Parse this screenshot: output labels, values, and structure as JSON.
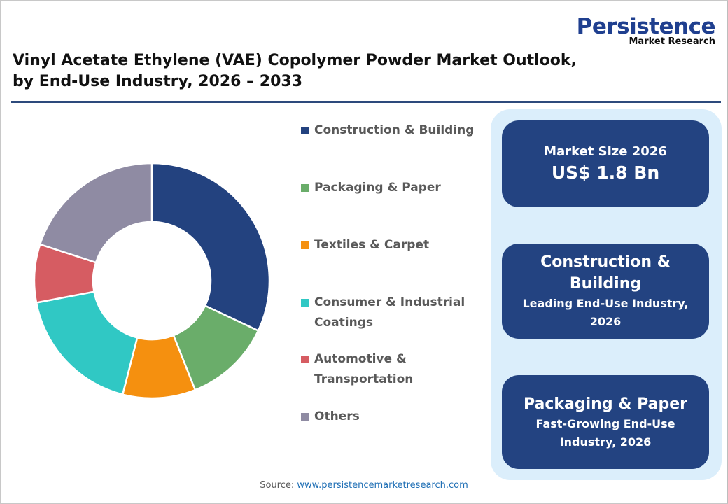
{
  "brand": {
    "name": "Persistence",
    "tagline": "Market Research",
    "color": "#1f3f8f"
  },
  "title": {
    "line1": "Vinyl Acetate Ethylene (VAE) Copolymer Powder Market Outlook,",
    "line2": "by End-Use Industry, 2026 – 2033"
  },
  "legend": [
    {
      "label_lines": [
        "Construction & Building"
      ],
      "color": "#23427f"
    },
    {
      "label_lines": [
        "Packaging & Paper"
      ],
      "color": "#6aad6a"
    },
    {
      "label_lines": [
        "Textiles & Carpet"
      ],
      "color": "#f5900f"
    },
    {
      "label_lines": [
        "Consumer & Industrial",
        "Coatings"
      ],
      "color": "#30c8c4"
    },
    {
      "label_lines": [
        "Automotive &",
        "Transportation"
      ],
      "color": "#d65c62"
    },
    {
      "label_lines": [
        "Others"
      ],
      "color": "#8f8ba3"
    }
  ],
  "cards": {
    "market_size": {
      "label": "Market Size 2026",
      "value": "US$ 1.8 Bn"
    },
    "leading": {
      "head_lines": [
        "Construction &",
        "Building"
      ],
      "sub_lines": [
        "Leading End-Use Industry,",
        "2026"
      ]
    },
    "fast": {
      "head_lines": [
        "Packaging & Paper"
      ],
      "sub_lines": [
        "Fast-Growing End-Use",
        "Industry, 2026"
      ]
    }
  },
  "source": {
    "prefix": "Source: ",
    "link": "www.persistencemarketresearch.com"
  },
  "chart_data": {
    "type": "pie",
    "subtype": "donut",
    "title": "Vinyl Acetate Ethylene (VAE) Copolymer Powder Market Outlook, by End-Use Industry, 2026 – 2033",
    "categories": [
      "Construction & Building",
      "Packaging & Paper",
      "Textiles & Carpet",
      "Consumer & Industrial Coatings",
      "Automotive & Transportation",
      "Others"
    ],
    "values": [
      32,
      12,
      10,
      18,
      8,
      20
    ],
    "unit": "% share (estimated from slice angles)",
    "colors": [
      "#23427f",
      "#6aad6a",
      "#f5900f",
      "#30c8c4",
      "#d65c62",
      "#8f8ba3"
    ],
    "start_angle_deg": 0,
    "direction": "clockwise",
    "legend_position": "right",
    "data_labels": false
  }
}
